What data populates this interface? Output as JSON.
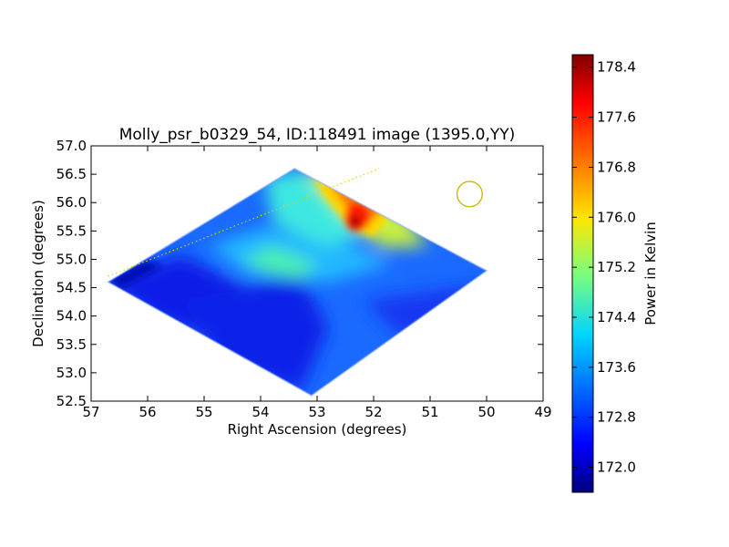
{
  "chart_data": {
    "type": "heatmap",
    "title": "Molly_psr_b0329_54, ID:118491 image (1395.0,YY)",
    "xlabel": "Right Ascension (degrees)",
    "ylabel": "Declination (degrees)",
    "xlim": [
      57,
      49
    ],
    "ylim": [
      52.5,
      57.0
    ],
    "x_ticks": [
      "57",
      "56",
      "55",
      "54",
      "53",
      "52",
      "51",
      "50",
      "49"
    ],
    "x_tick_values": [
      57,
      56,
      55,
      54,
      53,
      52,
      51,
      50,
      49
    ],
    "y_ticks": [
      "52.5",
      "53.0",
      "53.5",
      "54.0",
      "54.5",
      "55.0",
      "55.5",
      "56.0",
      "56.5",
      "57.0"
    ],
    "y_tick_values": [
      52.5,
      53.0,
      53.5,
      54.0,
      54.5,
      55.0,
      55.5,
      56.0,
      56.5,
      57.0
    ],
    "colorbar": {
      "label": "Power in Kelvin",
      "range": [
        171.6,
        178.6
      ],
      "ticks": [
        "172.0",
        "172.8",
        "173.6",
        "174.4",
        "175.2",
        "176.0",
        "176.8",
        "177.6",
        "178.4"
      ],
      "tick_values": [
        172.0,
        172.8,
        173.6,
        174.4,
        175.2,
        176.0,
        176.8,
        177.6,
        178.4
      ],
      "colormap": "jet"
    },
    "coverage_region": [
      [
        56.7,
        54.6
      ],
      [
        53.4,
        56.6
      ],
      [
        50.0,
        54.8
      ],
      [
        53.1,
        52.6
      ]
    ],
    "hotspot": {
      "x": 52.3,
      "y": 55.6,
      "value": 178.4
    },
    "dotted_line": {
      "from": [
        56.7,
        54.7
      ],
      "to": [
        51.9,
        56.6
      ],
      "color": "#e0d000"
    },
    "beam_circle": {
      "x": 50.3,
      "y": 56.15,
      "radius_deg": 0.36,
      "color": "#c8b400"
    },
    "grid": false,
    "legend": "none"
  }
}
